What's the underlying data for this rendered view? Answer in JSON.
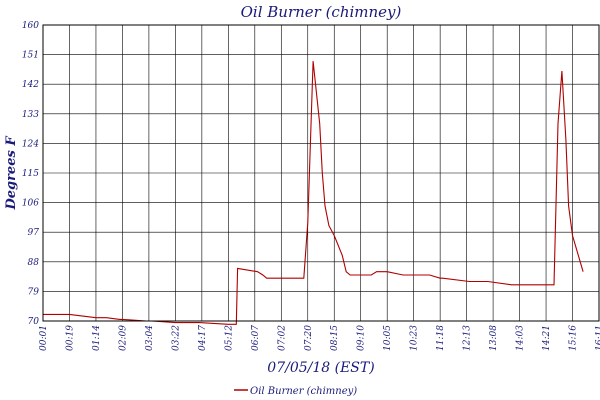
{
  "chart_data": {
    "type": "line",
    "title": "Oil Burner (chimney)",
    "xlabel": "07/05/18 (EST)",
    "ylabel": "Degrees F",
    "ylim": [
      70,
      160
    ],
    "yticks": [
      70,
      79,
      88,
      97,
      106,
      115,
      124,
      133,
      142,
      151,
      160
    ],
    "grid": true,
    "legend_position": "bottom-center",
    "x_tick_labels": [
      "00:01",
      "00:19",
      "01:14",
      "02:09",
      "03:04",
      "03:22",
      "04:17",
      "05:12",
      "06:07",
      "07:02",
      "07:20",
      "08:15",
      "09:10",
      "10:05",
      "10:23",
      "11:18",
      "12:13",
      "13:08",
      "14:03",
      "14:21",
      "15:16",
      "16:11"
    ],
    "series": [
      {
        "name": "Oil Burner (chimney)",
        "color": "#b00000",
        "x_tick_index": [
          0,
          1.0,
          1.5,
          2.0,
          2.4,
          2.9,
          3.0,
          3.9,
          4.1,
          5.0,
          5.9,
          7.0,
          7.3,
          7.35,
          8.1,
          8.3,
          8.45,
          9.8,
          9.85,
          10.0,
          10.2,
          10.45,
          10.55,
          10.65,
          10.8,
          11.0,
          11.3,
          11.45,
          11.6,
          12.0,
          12.4,
          12.6,
          12.9,
          13.0,
          13.6,
          14.0,
          14.6,
          15.0,
          15.1,
          16.1,
          16.8,
          17.7,
          18.0,
          18.7,
          18.85,
          19.0,
          19.15,
          19.3,
          19.45,
          19.6,
          19.75,
          19.85,
          20.0,
          20.4
        ],
        "values": [
          72,
          72,
          71.5,
          71,
          71,
          70.5,
          70.5,
          70,
          70,
          69.5,
          69.5,
          69,
          69,
          86,
          85,
          84,
          83,
          83,
          83,
          100,
          149,
          130,
          115,
          105,
          99,
          96,
          90,
          85,
          84,
          84,
          84,
          85,
          85,
          85,
          84,
          84,
          84,
          83,
          83,
          82,
          82,
          81,
          81,
          81,
          81,
          81,
          81,
          81,
          130,
          146,
          125,
          105,
          96,
          85
        ]
      }
    ]
  }
}
